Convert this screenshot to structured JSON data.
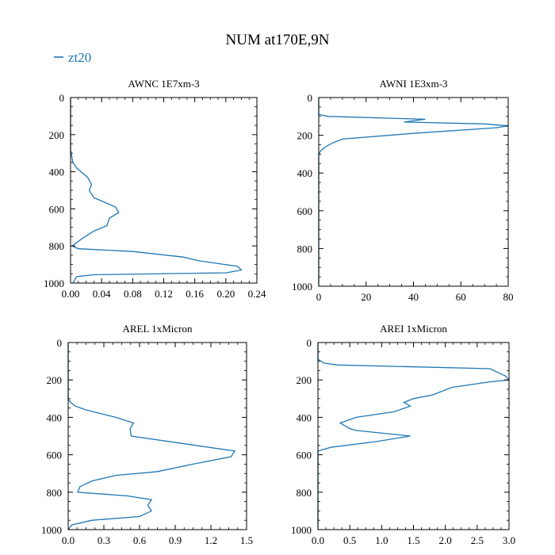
{
  "figure_title": "NUM at170E,9N",
  "legend": {
    "label": "zt20",
    "color": "#1f77b4"
  },
  "chart_data": [
    {
      "type": "line",
      "title": "AWNC  1E7xm-3",
      "xlim": [
        0,
        0.24
      ],
      "ylim": [
        1000,
        0
      ],
      "xticks": [
        0,
        0.04,
        0.08,
        0.12,
        0.16,
        0.2,
        0.24
      ],
      "xtick_labels": [
        "0.00",
        "0.04",
        "0.08",
        "0.12",
        "0.16",
        "0.20",
        "0.24"
      ],
      "yticks": [
        0,
        200,
        400,
        600,
        800,
        1000
      ],
      "ytick_labels": [
        "0",
        "200",
        "400",
        "600",
        "800",
        "1000"
      ],
      "series": [
        {
          "name": "zt20",
          "x": [
            0.0,
            0.0,
            0.003,
            0.008,
            0.016,
            0.022,
            0.027,
            0.024,
            0.03,
            0.058,
            0.062,
            0.05,
            0.047,
            0.03,
            0.015,
            0.002,
            0.01,
            0.08,
            0.145,
            0.165,
            0.215,
            0.22,
            0.2,
            0.03,
            0.008,
            0.003
          ],
          "y": [
            0,
            280,
            350,
            380,
            410,
            430,
            470,
            500,
            540,
            590,
            620,
            650,
            690,
            720,
            760,
            800,
            815,
            830,
            860,
            880,
            910,
            930,
            945,
            955,
            965,
            1000
          ]
        }
      ]
    },
    {
      "type": "line",
      "title": "AWNI  1E3xm-3",
      "xlim": [
        0,
        80
      ],
      "ylim": [
        1000,
        0
      ],
      "xticks": [
        0,
        20,
        40,
        60,
        80
      ],
      "xtick_labels": [
        "0",
        "20",
        "40",
        "60",
        "80"
      ],
      "yticks": [
        0,
        200,
        400,
        600,
        800,
        1000
      ],
      "ytick_labels": [
        "0",
        "200",
        "400",
        "600",
        "800",
        "1000"
      ],
      "series": [
        {
          "name": "zt20",
          "x": [
            0,
            0,
            4,
            45,
            36,
            70,
            80,
            75,
            40,
            10,
            6,
            3,
            1,
            0,
            0
          ],
          "y": [
            0,
            90,
            100,
            115,
            130,
            140,
            150,
            160,
            190,
            220,
            240,
            260,
            280,
            300,
            1000
          ]
        }
      ]
    },
    {
      "type": "line",
      "title": "AREL  1xMicron",
      "xlim": [
        0,
        1.5
      ],
      "ylim": [
        1000,
        0
      ],
      "xticks": [
        0,
        0.3,
        0.6,
        0.9,
        1.2,
        1.5
      ],
      "xtick_labels": [
        "0.0",
        "0.3",
        "0.6",
        "0.9",
        "1.2",
        "1.5"
      ],
      "yticks": [
        0,
        200,
        400,
        600,
        800,
        1000
      ],
      "ytick_labels": [
        "0",
        "200",
        "400",
        "600",
        "800",
        "1000"
      ],
      "series": [
        {
          "name": "zt20",
          "x": [
            0.0,
            0.0,
            0.02,
            0.06,
            0.15,
            0.4,
            0.55,
            0.52,
            0.53,
            1.4,
            1.37,
            1.05,
            0.75,
            0.4,
            0.2,
            0.1,
            0.08,
            0.5,
            0.7,
            0.67,
            0.7,
            0.6,
            0.2,
            0.03,
            0.0
          ],
          "y": [
            0,
            300,
            320,
            340,
            360,
            400,
            430,
            460,
            500,
            580,
            610,
            650,
            690,
            710,
            740,
            770,
            800,
            820,
            840,
            870,
            900,
            930,
            950,
            975,
            1000
          ]
        }
      ]
    },
    {
      "type": "line",
      "title": "AREI  1xMicron",
      "xlim": [
        0,
        3.0
      ],
      "ylim": [
        1000,
        0
      ],
      "xticks": [
        0,
        0.5,
        1.0,
        1.5,
        2.0,
        2.5,
        3.0
      ],
      "xtick_labels": [
        "0.0",
        "0.5",
        "1.0",
        "1.5",
        "2.0",
        "2.5",
        "3.0"
      ],
      "yticks": [
        0,
        200,
        400,
        600,
        800,
        1000
      ],
      "ytick_labels": [
        "0",
        "200",
        "400",
        "600",
        "800",
        "1000"
      ],
      "series": [
        {
          "name": "zt20",
          "x": [
            0,
            0,
            0.1,
            0.3,
            2.7,
            2.95,
            3.0,
            2.7,
            2.1,
            1.8,
            1.5,
            1.35,
            1.45,
            1.2,
            0.6,
            0.35,
            0.5,
            0.6,
            1.45,
            0.9,
            0.2,
            0.05,
            0,
            0
          ],
          "y": [
            0,
            90,
            110,
            120,
            140,
            180,
            200,
            210,
            240,
            280,
            300,
            320,
            340,
            370,
            400,
            430,
            460,
            470,
            500,
            530,
            560,
            575,
            580,
            1000
          ]
        }
      ]
    }
  ]
}
